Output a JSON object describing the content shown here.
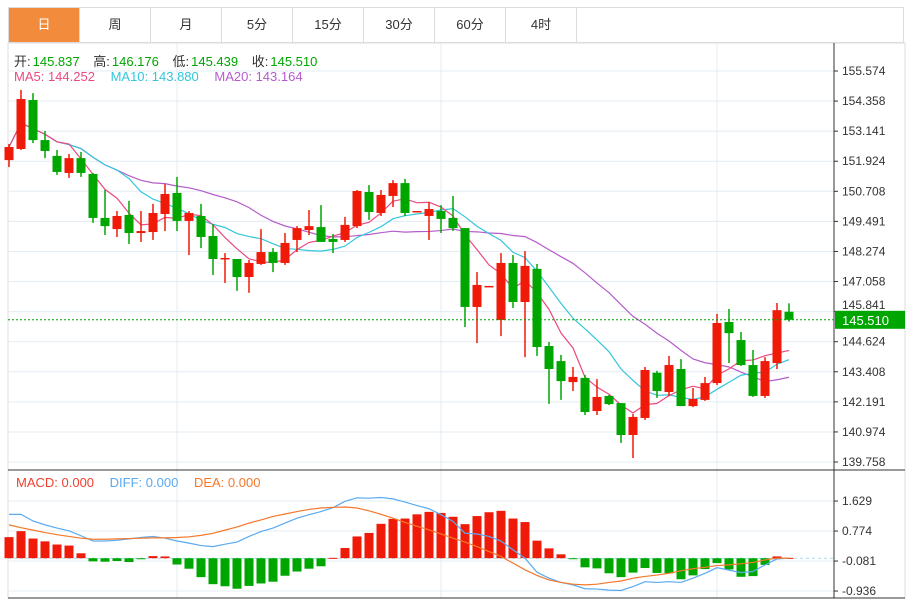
{
  "tabs": [
    {
      "label": "日",
      "active": true
    },
    {
      "label": "周"
    },
    {
      "label": "月"
    },
    {
      "label": "5分"
    },
    {
      "label": "15分"
    },
    {
      "label": "30分"
    },
    {
      "label": "60分"
    },
    {
      "label": "4时"
    }
  ],
  "ohlc_legend": {
    "open_label": "开:",
    "open": "145.837",
    "high_label": "高:",
    "high": "146.176",
    "low_label": "低:",
    "low": "145.439",
    "close_label": "收:",
    "close": "145.510"
  },
  "ma_legend": {
    "ma5": "MA5: 144.252",
    "ma10": "MA10: 143.880",
    "ma20": "MA20: 143.164"
  },
  "macd_legend": {
    "macd": "MACD: 0.000",
    "diff": "DIFF: 0.000",
    "dea": "DEA: 0.000"
  },
  "colors": {
    "up": "#f01a08",
    "down": "#00a600",
    "ma5": "#ea4a80",
    "ma10": "#33c6dc",
    "ma20": "#b55ccc",
    "diff": "#5aaaf0",
    "dea": "#f5782a",
    "accent": "#f28c3c",
    "last_price": "#00a600"
  },
  "chart_data": [
    {
      "type": "candlestick",
      "title": "K-line daily",
      "price_ticks": [
        "155.574",
        "154.358",
        "153.141",
        "151.924",
        "150.708",
        "149.491",
        "148.274",
        "147.058",
        "145.841",
        "144.624",
        "143.408",
        "142.191",
        "140.974",
        "139.758"
      ],
      "ylim": [
        139.758,
        155.574
      ],
      "last_price": "145.510",
      "ohlc": [
        [
          151.97,
          152.62,
          151.69,
          152.5
        ],
        [
          152.42,
          154.81,
          152.38,
          154.44
        ],
        [
          154.4,
          154.68,
          152.66,
          152.78
        ],
        [
          152.78,
          153.15,
          152.05,
          152.34
        ],
        [
          152.14,
          152.38,
          151.37,
          151.49
        ],
        [
          151.45,
          152.22,
          151.25,
          152.05
        ],
        [
          152.05,
          152.3,
          151.29,
          151.45
        ],
        [
          151.41,
          151.45,
          149.43,
          149.63
        ],
        [
          149.63,
          150.76,
          148.94,
          149.3
        ],
        [
          149.18,
          149.91,
          148.86,
          149.71
        ],
        [
          149.75,
          150.32,
          148.58,
          149.02
        ],
        [
          149.02,
          149.91,
          148.66,
          149.1
        ],
        [
          149.06,
          150.2,
          148.74,
          149.83
        ],
        [
          149.79,
          151.0,
          149.1,
          150.6
        ],
        [
          150.64,
          151.29,
          149.1,
          149.51
        ],
        [
          149.51,
          149.91,
          148.13,
          149.83
        ],
        [
          149.71,
          150.2,
          148.41,
          148.86
        ],
        [
          148.9,
          149.38,
          147.32,
          147.97
        ],
        [
          147.97,
          148.21,
          147.0,
          148.01
        ],
        [
          147.97,
          147.97,
          146.68,
          147.24
        ],
        [
          147.24,
          147.93,
          146.6,
          147.81
        ],
        [
          147.77,
          149.18,
          147.73,
          148.25
        ],
        [
          148.25,
          148.41,
          147.44,
          147.81
        ],
        [
          147.81,
          149.02,
          147.73,
          148.62
        ],
        [
          148.74,
          149.3,
          148.25,
          149.22
        ],
        [
          149.14,
          149.95,
          148.94,
          149.3
        ],
        [
          149.26,
          150.15,
          148.66,
          148.66
        ],
        [
          148.78,
          148.98,
          148.21,
          148.66
        ],
        [
          148.74,
          149.67,
          148.66,
          149.35
        ],
        [
          149.3,
          150.76,
          149.22,
          150.72
        ],
        [
          150.68,
          150.96,
          149.55,
          149.87
        ],
        [
          149.83,
          150.76,
          149.71,
          150.56
        ],
        [
          150.52,
          151.16,
          150.07,
          151.04
        ],
        [
          151.04,
          151.21,
          149.71,
          149.83
        ],
        [
          149.87,
          149.91,
          149.87,
          149.91
        ],
        [
          149.71,
          150.27,
          148.74,
          149.99
        ],
        [
          149.91,
          150.15,
          149.02,
          149.59
        ],
        [
          149.63,
          150.52,
          149.1,
          149.22
        ],
        [
          149.22,
          149.22,
          145.22,
          146.03
        ],
        [
          146.03,
          147.44,
          144.57,
          146.92
        ],
        [
          146.84,
          146.88,
          146.84,
          146.88
        ],
        [
          145.5,
          148.21,
          144.85,
          147.81
        ],
        [
          147.81,
          148.13,
          145.99,
          146.23
        ],
        [
          146.23,
          148.29,
          144.0,
          147.69
        ],
        [
          147.57,
          147.77,
          144.05,
          144.41
        ],
        [
          144.45,
          144.61,
          142.11,
          143.52
        ],
        [
          143.84,
          144.09,
          142.27,
          143.03
        ],
        [
          142.99,
          143.6,
          142.63,
          143.2
        ],
        [
          143.16,
          143.28,
          141.66,
          141.78
        ],
        [
          141.82,
          143.11,
          141.66,
          142.39
        ],
        [
          142.43,
          142.47,
          142.06,
          142.1
        ],
        [
          142.14,
          142.14,
          140.53,
          140.85
        ],
        [
          140.85,
          141.7,
          139.92,
          141.58
        ],
        [
          141.54,
          143.6,
          141.46,
          143.48
        ],
        [
          143.37,
          143.45,
          142.35,
          142.63
        ],
        [
          142.59,
          144.05,
          142.43,
          143.68
        ],
        [
          143.52,
          143.92,
          142.02,
          142.02
        ],
        [
          142.02,
          142.75,
          141.98,
          142.31
        ],
        [
          142.27,
          143.2,
          142.23,
          142.95
        ],
        [
          142.95,
          145.75,
          142.87,
          145.38
        ],
        [
          145.42,
          145.95,
          143.76,
          144.97
        ],
        [
          144.69,
          145.02,
          143.64,
          143.68
        ],
        [
          143.68,
          144.29,
          142.39,
          142.43
        ],
        [
          142.43,
          144.0,
          142.35,
          143.84
        ],
        [
          143.76,
          146.19,
          143.52,
          145.9
        ],
        [
          145.837,
          146.176,
          145.439,
          145.51
        ]
      ],
      "ma_periods": [
        5,
        10,
        20
      ]
    },
    {
      "type": "bar+line",
      "title": "MACD",
      "ticks": [
        "1.629",
        "0.774",
        "-0.081",
        "-0.936"
      ],
      "ylim": [
        -1.0,
        1.95
      ],
      "macd": [
        0.6,
        0.77,
        0.56,
        0.48,
        0.39,
        0.36,
        0.14,
        -0.09,
        -0.1,
        -0.08,
        -0.11,
        -0.03,
        0.06,
        0.05,
        -0.18,
        -0.3,
        -0.54,
        -0.74,
        -0.8,
        -0.87,
        -0.79,
        -0.72,
        -0.67,
        -0.5,
        -0.38,
        -0.3,
        -0.23,
        0.01,
        0.29,
        0.62,
        0.72,
        0.98,
        1.12,
        1.13,
        1.25,
        1.32,
        1.29,
        1.18,
        0.97,
        1.2,
        1.31,
        1.35,
        1.13,
        1.03,
        0.5,
        0.28,
        0.11,
        -0.01,
        -0.26,
        -0.29,
        -0.43,
        -0.54,
        -0.41,
        -0.28,
        -0.42,
        -0.43,
        -0.6,
        -0.49,
        -0.31,
        -0.14,
        -0.32,
        -0.53,
        -0.51,
        -0.19,
        0.05,
        0.01
      ],
      "diff": [
        1.25,
        1.25,
        1.06,
        0.95,
        0.86,
        0.78,
        0.64,
        0.49,
        0.49,
        0.51,
        0.55,
        0.59,
        0.62,
        0.57,
        0.49,
        0.43,
        0.36,
        0.33,
        0.4,
        0.46,
        0.62,
        0.76,
        0.86,
        1.0,
        1.14,
        1.24,
        1.33,
        1.44,
        1.62,
        1.72,
        1.71,
        1.73,
        1.69,
        1.6,
        1.5,
        1.41,
        1.24,
        1.05,
        0.71,
        0.69,
        0.62,
        0.49,
        0.24,
        0.0,
        -0.4,
        -0.57,
        -0.69,
        -0.76,
        -0.87,
        -0.88,
        -0.91,
        -0.92,
        -0.81,
        -0.67,
        -0.69,
        -0.67,
        -0.69,
        -0.57,
        -0.43,
        -0.27,
        -0.34,
        -0.41,
        -0.38,
        -0.19,
        -0.02,
        0.0
      ],
      "dea": [
        0.95,
        0.87,
        0.8,
        0.73,
        0.67,
        0.62,
        0.57,
        0.54,
        0.54,
        0.55,
        0.56,
        0.57,
        0.58,
        0.58,
        0.59,
        0.61,
        0.65,
        0.71,
        0.8,
        0.89,
        1.0,
        1.09,
        1.19,
        1.26,
        1.33,
        1.39,
        1.43,
        1.45,
        1.46,
        1.43,
        1.35,
        1.25,
        1.14,
        1.02,
        0.91,
        0.81,
        0.69,
        0.57,
        0.46,
        0.33,
        0.19,
        0.05,
        -0.14,
        -0.33,
        -0.49,
        -0.62,
        -0.69,
        -0.74,
        -0.76,
        -0.74,
        -0.69,
        -0.65,
        -0.57,
        -0.52,
        -0.48,
        -0.43,
        -0.36,
        -0.3,
        -0.26,
        -0.21,
        -0.19,
        -0.16,
        -0.12,
        -0.05,
        0.0,
        0.0
      ]
    }
  ]
}
